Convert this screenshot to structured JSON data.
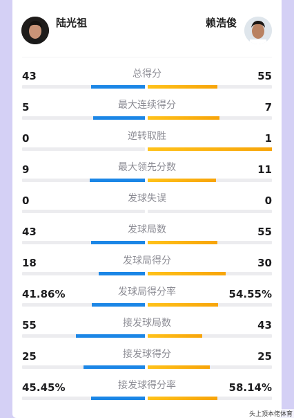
{
  "players": {
    "left": {
      "name": "陆光祖"
    },
    "right": {
      "name": "赖浩俊"
    }
  },
  "colors": {
    "left_bar": "#1b86e6",
    "right_bar": "#f7a409",
    "track": "#ececef"
  },
  "stats": [
    {
      "label": "总得分",
      "left": "43",
      "right": "55",
      "left_share": 0.44,
      "right_share": 0.56
    },
    {
      "label": "最大连续得分",
      "left": "5",
      "right": "7",
      "left_share": 0.42,
      "right_share": 0.58
    },
    {
      "label": "逆转取胜",
      "left": "0",
      "right": "1",
      "left_share": 0.0,
      "right_share": 1.0
    },
    {
      "label": "最大领先分数",
      "left": "9",
      "right": "11",
      "left_share": 0.45,
      "right_share": 0.55
    },
    {
      "label": "发球失误",
      "left": "0",
      "right": "0",
      "left_share": 0.0,
      "right_share": 0.0
    },
    {
      "label": "发球局数",
      "left": "43",
      "right": "55",
      "left_share": 0.44,
      "right_share": 0.56
    },
    {
      "label": "发球局得分",
      "left": "18",
      "right": "30",
      "left_share": 0.375,
      "right_share": 0.625
    },
    {
      "label": "发球局得分率",
      "left": "41.86%",
      "right": "54.55%",
      "left_share": 0.434,
      "right_share": 0.566
    },
    {
      "label": "接发球局数",
      "left": "55",
      "right": "43",
      "left_share": 0.56,
      "right_share": 0.44
    },
    {
      "label": "接发球得分",
      "left": "25",
      "right": "25",
      "left_share": 0.5,
      "right_share": 0.5
    },
    {
      "label": "接发球得分率",
      "left": "45.45%",
      "right": "58.14%",
      "left_share": 0.439,
      "right_share": 0.561
    }
  ],
  "watermark": "头上顶本佬体育"
}
